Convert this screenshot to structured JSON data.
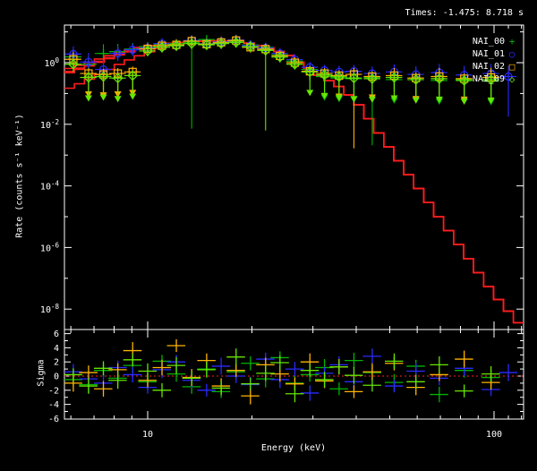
{
  "title": "Times: -1.475: 8.718 s",
  "colors": {
    "background": "#000000",
    "frame": "#ffffff",
    "model": "#ff1c1c",
    "zero_line": "#ff2020",
    "nai00": "#00b400",
    "nai01": "#2a2aff",
    "nai02": "#ffb400",
    "nai09": "#66e600"
  },
  "legend": {
    "entries": [
      {
        "label": "NAI_00",
        "symbol": "+",
        "color": "#00b400"
      },
      {
        "label": "NAI_01",
        "symbol": "○",
        "color": "#2a2aff"
      },
      {
        "label": "NAI_02",
        "symbol": "□",
        "color": "#ffb400"
      },
      {
        "label": "NAI_09",
        "symbol": "◇",
        "color": "#66e600"
      }
    ]
  },
  "chart_data": {
    "type": "scatter",
    "title": "Times: -1.475: 8.718 s",
    "xlabel": "Energy (keV)",
    "ylabel_top": "Rate (counts s⁻¹ keV⁻¹)",
    "ylabel_bottom": "Sigma",
    "x_scale": "log",
    "x_range_kev": [
      5.75,
      121.6
    ],
    "y_top_scale": "log",
    "y_top_range_exp": [
      -8.66,
      1.22
    ],
    "y_ticks_labeled_exp": [
      0,
      -2,
      -4,
      -6,
      -8
    ],
    "y_ticks_minor_exp": [
      1,
      -1,
      -3,
      -5,
      -7
    ],
    "x_ticks_labeled": [
      10,
      100
    ],
    "x_ticks_minor": [
      6,
      7,
      8,
      9,
      20,
      30,
      40,
      50,
      60,
      70,
      80,
      90,
      110,
      120
    ],
    "sigma_ticks_labeled": [
      6,
      4,
      2,
      0,
      -2,
      -4,
      -6
    ],
    "sigma_range": [
      -6.5,
      6.6
    ],
    "legend_position": "top-right",
    "grid": false,
    "tail_start_index": 16,
    "model": {
      "name": "fit-model",
      "color": "#ff1c1c",
      "anchors_kev_log10rate": [
        [
          5.75,
          -0.24
        ],
        [
          7,
          0.06
        ],
        [
          8.5,
          0.38
        ],
        [
          10,
          0.55
        ],
        [
          12,
          0.65
        ],
        [
          14,
          0.7
        ],
        [
          16,
          0.72
        ],
        [
          18,
          0.69
        ],
        [
          20,
          0.62
        ],
        [
          23,
          0.44
        ],
        [
          26,
          0.2
        ],
        [
          30,
          -0.31
        ],
        [
          35,
          -0.7
        ],
        [
          40,
          -1.25
        ],
        [
          50,
          -2.78
        ],
        [
          60,
          -4.02
        ],
        [
          80,
          -5.99
        ],
        [
          100,
          -7.52
        ],
        [
          121,
          -8.6
        ]
      ],
      "detector_offsets_dex": {
        "NAI_00": -0.14,
        "NAI_01": 0.0,
        "NAI_02": -0.1,
        "NAI_09": -0.66
      },
      "offset_fade_above_kev": 12
    },
    "series": [
      {
        "name": "NAI_00",
        "color": "#00b400",
        "marker": "plus",
        "half_width_frac": 0.055,
        "energies_kev": [
          6.1,
          6.75,
          7.45,
          8.2,
          9.05,
          10.0,
          11.0,
          12.1,
          13.4,
          14.8,
          16.3,
          18.0,
          19.8,
          21.9,
          24.1,
          26.6,
          29.4,
          32.4,
          35.7,
          39.4,
          44.5,
          51.5,
          59.5,
          69.5,
          82.0,
          98.0
        ],
        "rate_log10": [
          0.19,
          -0.05,
          0.3,
          0.36,
          0.44,
          0.52,
          0.6,
          0.62,
          0.66,
          0.75,
          0.64,
          0.7,
          0.58,
          0.5,
          0.26,
          0.05,
          -0.22,
          -0.45,
          -0.5,
          -0.52,
          -0.48,
          -0.55,
          -0.5,
          -0.58,
          -0.55,
          -0.6
        ],
        "err_dex": [
          0.25,
          0.3,
          0.3,
          0.25,
          0.2,
          0.15,
          0.12,
          0.1,
          0.09,
          0.09,
          0.09,
          0.09,
          0.1,
          0.12,
          0.13,
          0.15,
          0.2,
          0.25,
          0.28,
          0.3,
          0.32,
          0.35,
          0.38,
          0.4,
          0.42,
          0.45
        ],
        "upper_limit_indices": [
          17,
          18,
          19,
          21,
          23,
          25
        ],
        "err_lo_override_dex": {
          "8": 2.8,
          "20": 2.2
        },
        "sigma": [
          -0.5,
          -1.2,
          0.8,
          -0.3,
          1.5,
          -0.8,
          2.1,
          0.3,
          -1.5,
          1.0,
          -2.2,
          0.6,
          1.8,
          -0.4,
          2.6,
          -1.0,
          0.2,
          1.2,
          -1.8,
          2.2,
          0.5,
          -0.9,
          1.4,
          -2.6,
          0.8,
          -0.2
        ],
        "sigma_err_cycle": [
          1.0,
          1.2,
          0.9,
          1.1
        ]
      },
      {
        "name": "NAI_01",
        "color": "#2a2aff",
        "marker": "circle",
        "half_width_frac": 0.055,
        "energies_kev": [
          6.1,
          6.75,
          7.45,
          8.2,
          9.05,
          10.0,
          11.0,
          12.1,
          13.4,
          14.8,
          16.3,
          18.0,
          19.8,
          21.9,
          24.1,
          26.6,
          29.4,
          32.4,
          35.7,
          39.4,
          44.5,
          51.5,
          59.5,
          69.5,
          82.0,
          98.0,
          110.0
        ],
        "rate_log10": [
          0.28,
          0.02,
          -0.22,
          0.3,
          0.42,
          0.48,
          0.62,
          0.55,
          0.72,
          0.62,
          0.68,
          0.74,
          0.56,
          0.48,
          0.3,
          0.1,
          -0.15,
          -0.25,
          -0.3,
          -0.28,
          -0.35,
          -0.3,
          -0.38,
          -0.32,
          -0.4,
          -0.35,
          -0.45
        ],
        "err_dex": [
          0.25,
          0.3,
          0.3,
          0.25,
          0.2,
          0.15,
          0.12,
          0.1,
          0.09,
          0.09,
          0.09,
          0.09,
          0.1,
          0.12,
          0.13,
          0.15,
          0.2,
          0.25,
          0.28,
          0.3,
          0.32,
          0.35,
          0.38,
          0.4,
          0.42,
          0.45,
          0.5
        ],
        "upper_limit_indices": [],
        "err_lo_override_dex": {
          "26": 1.3
        },
        "sigma": [
          0.6,
          -0.4,
          -1.0,
          1.2,
          0.2,
          -1.6,
          0.9,
          2.0,
          -0.6,
          -2.0,
          1.4,
          0.0,
          -1.2,
          2.4,
          -0.5,
          1.0,
          -2.4,
          0.4,
          1.6,
          -0.8,
          2.8,
          -1.4,
          0.7,
          -0.3,
          1.1,
          -1.9,
          0.5
        ],
        "sigma_err_cycle": [
          1.1,
          0.9,
          1.2,
          1.0
        ]
      },
      {
        "name": "NAI_02",
        "color": "#ffb400",
        "marker": "square",
        "half_width_frac": 0.055,
        "energies_kev": [
          6.1,
          6.75,
          7.45,
          8.2,
          9.05,
          10.0,
          11.0,
          12.1,
          13.4,
          14.8,
          16.3,
          18.0,
          19.8,
          21.9,
          24.1,
          26.6,
          29.4,
          32.4,
          35.7,
          39.4,
          44.5,
          51.5,
          59.5,
          69.5,
          82.0,
          98.0
        ],
        "rate_log10": [
          0.11,
          -0.35,
          -0.38,
          -0.35,
          -0.3,
          0.45,
          0.55,
          0.58,
          0.7,
          0.6,
          0.66,
          0.72,
          0.5,
          0.44,
          0.22,
          0.0,
          -0.28,
          -0.35,
          -0.42,
          -0.38,
          -0.45,
          -0.42,
          -0.5,
          -0.45,
          -0.52,
          -0.48
        ],
        "err_dex": [
          0.25,
          0.3,
          0.3,
          0.25,
          0.2,
          0.15,
          0.12,
          0.1,
          0.09,
          0.09,
          0.09,
          0.09,
          0.1,
          0.12,
          0.13,
          0.15,
          0.2,
          0.25,
          0.28,
          0.3,
          0.32,
          0.35,
          0.38,
          0.4,
          0.42,
          0.45
        ],
        "upper_limit_indices": [
          1,
          2,
          3,
          4,
          18,
          20,
          22,
          24
        ],
        "err_lo_override_dex": {
          "19": 2.4
        },
        "sigma": [
          -1.0,
          0.5,
          -1.8,
          0.9,
          3.6,
          -0.6,
          1.2,
          4.3,
          -0.2,
          2.2,
          -1.4,
          0.8,
          -2.8,
          1.6,
          0.3,
          -1.1,
          2.0,
          -0.7,
          1.3,
          -2.2,
          0.6,
          1.8,
          -1.6,
          0.2,
          2.4,
          -0.9
        ],
        "sigma_err_cycle": [
          1.2,
          1.0,
          1.1,
          0.9
        ]
      },
      {
        "name": "NAI_09",
        "color": "#66e600",
        "marker": "diamond",
        "half_width_frac": 0.055,
        "energies_kev": [
          6.1,
          6.75,
          7.45,
          8.2,
          9.05,
          10.0,
          11.0,
          12.1,
          13.4,
          14.8,
          16.3,
          18.0,
          19.8,
          21.9,
          24.1,
          26.6,
          29.4,
          32.4,
          35.7,
          39.4,
          44.5,
          51.5,
          59.5,
          69.5,
          82.0,
          98.0
        ],
        "rate_log10": [
          -0.05,
          -0.48,
          -0.45,
          -0.5,
          -0.42,
          0.38,
          0.5,
          0.55,
          0.62,
          0.58,
          0.62,
          0.66,
          0.52,
          0.4,
          0.18,
          -0.05,
          -0.3,
          -0.4,
          -0.46,
          -0.5,
          -0.52,
          -0.48,
          -0.55,
          -0.52,
          -0.58,
          -0.55
        ],
        "err_dex": [
          0.25,
          0.3,
          0.3,
          0.25,
          0.2,
          0.15,
          0.12,
          0.1,
          0.09,
          0.09,
          0.09,
          0.09,
          0.1,
          0.12,
          0.13,
          0.15,
          0.2,
          0.25,
          0.28,
          0.3,
          0.32,
          0.35,
          0.38,
          0.4,
          0.42,
          0.45
        ],
        "upper_limit_indices": [
          1,
          2,
          3,
          4,
          16,
          17,
          18,
          19,
          20,
          21,
          22,
          23,
          24,
          25
        ],
        "err_lo_override_dex": {
          "13": 2.6
        },
        "sigma": [
          0.2,
          -1.4,
          1.1,
          -0.6,
          2.3,
          0.7,
          -2.0,
          1.5,
          -0.3,
          0.9,
          -1.7,
          2.7,
          -1.1,
          0.4,
          1.9,
          -2.5,
          0.8,
          -0.5,
          1.3,
          0.1,
          -1.3,
          2.1,
          -0.8,
          1.6,
          -2.1,
          0.3
        ],
        "sigma_err_cycle": [
          0.9,
          1.1,
          1.0,
          1.2
        ]
      }
    ]
  }
}
